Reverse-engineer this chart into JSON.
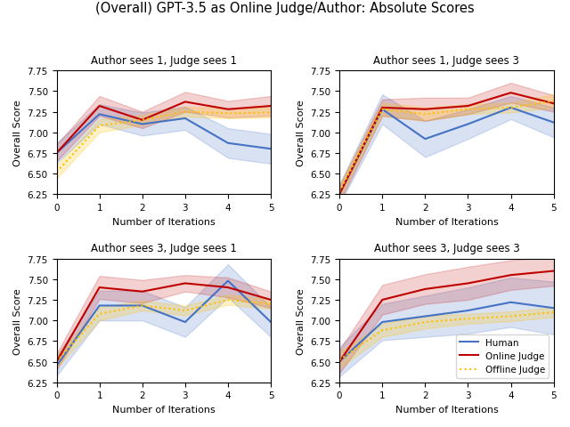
{
  "title": "(Overall) GPT-3.5 as Online Judge/Author: Absolute Scores",
  "subplots": [
    {
      "title": "Author sees 1, Judge sees 1",
      "human_mean": [
        6.75,
        7.22,
        7.1,
        7.17,
        6.87,
        6.8
      ],
      "human_std": [
        0.12,
        0.12,
        0.14,
        0.14,
        0.18,
        0.18
      ],
      "online_mean": [
        6.75,
        7.32,
        7.15,
        7.37,
        7.28,
        7.32
      ],
      "online_std": [
        0.1,
        0.12,
        0.1,
        0.12,
        0.1,
        0.12
      ],
      "offline_mean": [
        6.52,
        7.08,
        7.15,
        7.25,
        7.23,
        7.24
      ],
      "offline_std": [
        0.08,
        0.08,
        0.06,
        0.06,
        0.06,
        0.06
      ]
    },
    {
      "title": "Author sees 1, Judge sees 3",
      "human_mean": [
        6.25,
        7.28,
        6.92,
        7.1,
        7.3,
        7.12
      ],
      "human_std": [
        0.12,
        0.18,
        0.22,
        0.18,
        0.14,
        0.18
      ],
      "online_mean": [
        6.25,
        7.3,
        7.28,
        7.32,
        7.48,
        7.35
      ],
      "online_std": [
        0.1,
        0.1,
        0.14,
        0.1,
        0.12,
        0.1
      ],
      "offline_mean": [
        6.28,
        7.28,
        7.22,
        7.28,
        7.3,
        7.38
      ],
      "offline_std": [
        0.08,
        0.08,
        0.08,
        0.06,
        0.06,
        0.08
      ]
    },
    {
      "title": "Author sees 3, Judge sees 1",
      "human_mean": [
        6.45,
        7.18,
        7.18,
        6.98,
        7.48,
        6.98
      ],
      "human_std": [
        0.12,
        0.18,
        0.18,
        0.18,
        0.2,
        0.18
      ],
      "online_mean": [
        6.5,
        7.4,
        7.35,
        7.45,
        7.4,
        7.25
      ],
      "online_std": [
        0.1,
        0.14,
        0.14,
        0.1,
        0.12,
        0.1
      ],
      "offline_mean": [
        6.5,
        7.08,
        7.18,
        7.12,
        7.25,
        7.2
      ],
      "offline_std": [
        0.08,
        0.08,
        0.06,
        0.06,
        0.06,
        0.06
      ]
    },
    {
      "title": "Author sees 3, Judge sees 3",
      "human_mean": [
        6.5,
        6.98,
        7.05,
        7.12,
        7.22,
        7.15
      ],
      "human_std": [
        0.18,
        0.22,
        0.25,
        0.28,
        0.3,
        0.32
      ],
      "online_mean": [
        6.5,
        7.25,
        7.38,
        7.45,
        7.55,
        7.6
      ],
      "online_std": [
        0.14,
        0.18,
        0.18,
        0.2,
        0.18,
        0.18
      ],
      "offline_mean": [
        6.52,
        6.88,
        6.98,
        7.02,
        7.05,
        7.1
      ],
      "offline_std": [
        0.1,
        0.08,
        0.08,
        0.06,
        0.06,
        0.06
      ]
    }
  ],
  "x": [
    0,
    1,
    2,
    3,
    4,
    5
  ],
  "ylim": [
    6.25,
    7.75
  ],
  "yticks": [
    6.25,
    6.5,
    6.75,
    7.0,
    7.25,
    7.5,
    7.75
  ],
  "xlabel": "Number of Iterations",
  "ylabel": "Overall Score",
  "human_color": "#4472C4",
  "online_color": "#C00000",
  "offline_color": "#FFC000",
  "human_fill_alpha": 0.2,
  "online_fill_alpha": 0.18,
  "offline_fill_alpha": 0.22,
  "legend_labels": [
    "Human",
    "Online Judge",
    "Offline Judge"
  ]
}
